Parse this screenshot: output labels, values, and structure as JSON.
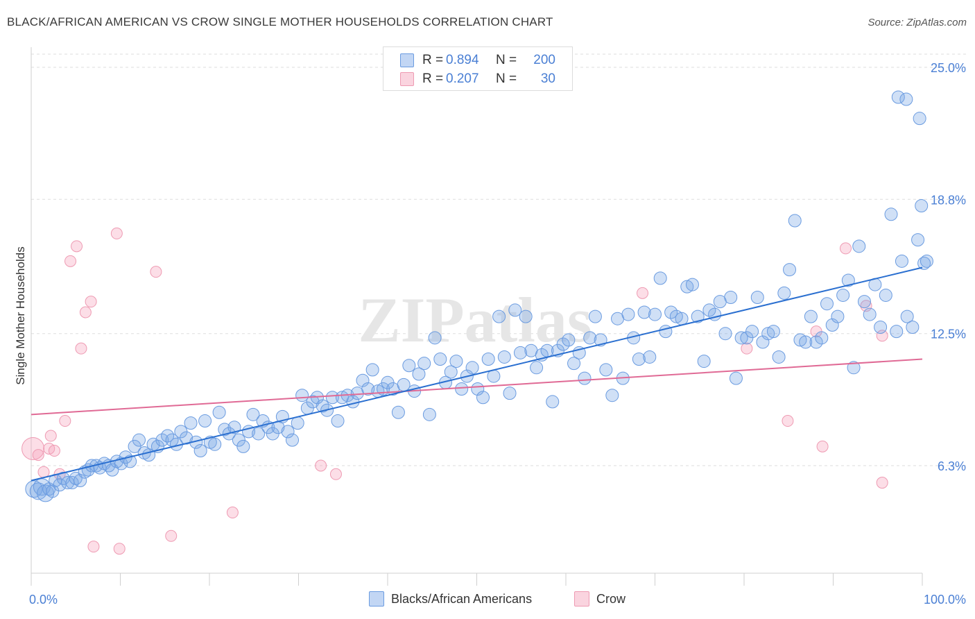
{
  "title": "BLACK/AFRICAN AMERICAN VS CROW SINGLE MOTHER HOUSEHOLDS CORRELATION CHART",
  "source": "Source: ZipAtlas.com",
  "watermark": "ZIPatlas",
  "colors": {
    "blue": "#4a7fd4",
    "blue_fill": "rgba(120,165,230,0.35)",
    "blue_stroke": "#6a9be0",
    "blue_line": "#2a6fd0",
    "pink_fill": "rgba(245,160,185,0.35)",
    "pink_stroke": "#ee9ab2",
    "pink_line": "#e06a95",
    "grid": "#dedede",
    "axis_text": "#4a7fd4"
  },
  "legend": {
    "rows": [
      {
        "r_label": "R =",
        "r_value": "0.894",
        "n_label": "N =",
        "n_value": "200"
      },
      {
        "r_label": "R =",
        "r_value": "0.207",
        "n_label": "N =",
        "n_value": "30"
      }
    ]
  },
  "bottom_legend": {
    "items": [
      {
        "label": "Blacks/African Americans"
      },
      {
        "label": "Crow"
      }
    ]
  },
  "chart_data": {
    "type": "scatter",
    "title": "BLACK/AFRICAN AMERICAN VS CROW SINGLE MOTHER HOUSEHOLDS CORRELATION CHART",
    "xlabel": "",
    "ylabel": "Single Mother Households",
    "xlim": [
      0,
      100
    ],
    "ylim": [
      0,
      26
    ],
    "x_tick_labels": [
      "0.0%",
      "100.0%"
    ],
    "y_ticks": [
      6.3,
      12.5,
      18.8,
      25.0
    ],
    "y_tick_labels": [
      "6.3%",
      "12.5%",
      "18.8%",
      "25.0%"
    ],
    "grid": "horizontal dashed",
    "legend_position": "top-center",
    "series": [
      {
        "name": "Blacks/African Americans",
        "color": "blue",
        "trend": {
          "x": [
            0,
            100
          ],
          "y": [
            5.6,
            15.6
          ]
        },
        "points": [
          [
            0.3,
            5.2
          ],
          [
            0.8,
            5.1
          ],
          [
            1.2,
            5.3
          ],
          [
            1.6,
            5.0
          ],
          [
            2.0,
            5.2
          ],
          [
            2.4,
            5.1
          ],
          [
            2.7,
            5.6
          ],
          [
            3.2,
            5.4
          ],
          [
            3.6,
            5.7
          ],
          [
            4.1,
            5.5
          ],
          [
            4.6,
            5.5
          ],
          [
            5.0,
            5.7
          ],
          [
            5.5,
            5.6
          ],
          [
            6.0,
            6.0
          ],
          [
            6.4,
            6.1
          ],
          [
            6.8,
            6.3
          ],
          [
            7.3,
            6.3
          ],
          [
            7.7,
            6.2
          ],
          [
            8.2,
            6.4
          ],
          [
            8.7,
            6.3
          ],
          [
            9.1,
            6.1
          ],
          [
            9.6,
            6.5
          ],
          [
            10.1,
            6.4
          ],
          [
            10.6,
            6.7
          ],
          [
            11.1,
            6.5
          ],
          [
            11.6,
            7.2
          ],
          [
            12.1,
            7.5
          ],
          [
            12.7,
            6.9
          ],
          [
            13.2,
            6.8
          ],
          [
            13.7,
            7.3
          ],
          [
            14.2,
            7.2
          ],
          [
            14.7,
            7.5
          ],
          [
            15.3,
            7.7
          ],
          [
            15.8,
            7.5
          ],
          [
            16.3,
            7.3
          ],
          [
            16.8,
            7.9
          ],
          [
            17.4,
            7.6
          ],
          [
            17.9,
            8.3
          ],
          [
            18.5,
            7.4
          ],
          [
            19.0,
            7.0
          ],
          [
            19.5,
            8.4
          ],
          [
            20.1,
            7.4
          ],
          [
            20.6,
            7.3
          ],
          [
            21.1,
            8.8
          ],
          [
            21.7,
            8.0
          ],
          [
            22.2,
            7.8
          ],
          [
            22.8,
            8.1
          ],
          [
            23.3,
            7.5
          ],
          [
            23.8,
            7.2
          ],
          [
            24.4,
            7.9
          ],
          [
            24.9,
            8.7
          ],
          [
            25.5,
            7.8
          ],
          [
            26.0,
            8.4
          ],
          [
            26.6,
            8.1
          ],
          [
            27.1,
            7.8
          ],
          [
            27.7,
            8.1
          ],
          [
            28.2,
            8.6
          ],
          [
            28.8,
            7.9
          ],
          [
            29.3,
            7.5
          ],
          [
            29.9,
            8.3
          ],
          [
            30.4,
            9.6
          ],
          [
            31.0,
            9.0
          ],
          [
            31.6,
            9.3
          ],
          [
            32.1,
            9.5
          ],
          [
            32.7,
            9.1
          ],
          [
            33.2,
            8.9
          ],
          [
            33.8,
            9.5
          ],
          [
            34.4,
            8.4
          ],
          [
            34.9,
            9.5
          ],
          [
            35.5,
            9.6
          ],
          [
            36.1,
            9.3
          ],
          [
            36.6,
            9.7
          ],
          [
            37.2,
            10.3
          ],
          [
            37.8,
            9.9
          ],
          [
            38.3,
            10.8
          ],
          [
            38.9,
            9.8
          ],
          [
            39.5,
            9.9
          ],
          [
            40.0,
            10.2
          ],
          [
            40.6,
            9.9
          ],
          [
            41.2,
            8.8
          ],
          [
            41.8,
            10.1
          ],
          [
            42.4,
            11.0
          ],
          [
            43.0,
            9.8
          ],
          [
            43.5,
            10.6
          ],
          [
            44.1,
            11.1
          ],
          [
            44.7,
            8.7
          ],
          [
            45.3,
            12.3
          ],
          [
            45.9,
            11.3
          ],
          [
            46.5,
            10.2
          ],
          [
            47.1,
            10.7
          ],
          [
            47.7,
            11.2
          ],
          [
            48.3,
            9.9
          ],
          [
            48.9,
            10.5
          ],
          [
            49.5,
            10.9
          ],
          [
            50.1,
            9.9
          ],
          [
            50.7,
            9.5
          ],
          [
            51.3,
            11.3
          ],
          [
            51.9,
            10.5
          ],
          [
            52.5,
            13.3
          ],
          [
            53.1,
            11.4
          ],
          [
            53.7,
            9.7
          ],
          [
            54.3,
            13.6
          ],
          [
            54.9,
            11.6
          ],
          [
            55.5,
            13.3
          ],
          [
            56.1,
            11.7
          ],
          [
            56.7,
            10.9
          ],
          [
            57.3,
            11.5
          ],
          [
            57.9,
            11.7
          ],
          [
            58.5,
            9.3
          ],
          [
            59.1,
            11.7
          ],
          [
            59.7,
            12.0
          ],
          [
            60.3,
            12.2
          ],
          [
            60.9,
            11.1
          ],
          [
            61.5,
            11.6
          ],
          [
            62.1,
            10.4
          ],
          [
            62.7,
            12.3
          ],
          [
            63.3,
            13.3
          ],
          [
            63.9,
            12.2
          ],
          [
            64.5,
            10.8
          ],
          [
            65.2,
            9.6
          ],
          [
            65.8,
            13.2
          ],
          [
            66.4,
            10.4
          ],
          [
            67.0,
            13.4
          ],
          [
            67.6,
            12.3
          ],
          [
            68.2,
            11.3
          ],
          [
            68.8,
            13.5
          ],
          [
            69.4,
            11.4
          ],
          [
            70.0,
            13.4
          ],
          [
            70.6,
            15.1
          ],
          [
            71.2,
            12.6
          ],
          [
            71.8,
            13.5
          ],
          [
            72.4,
            13.3
          ],
          [
            73.0,
            13.2
          ],
          [
            73.6,
            14.7
          ],
          [
            74.2,
            14.8
          ],
          [
            74.8,
            13.3
          ],
          [
            75.5,
            11.2
          ],
          [
            76.1,
            13.6
          ],
          [
            76.7,
            13.4
          ],
          [
            77.3,
            14.0
          ],
          [
            77.9,
            12.5
          ],
          [
            78.5,
            14.2
          ],
          [
            79.1,
            10.4
          ],
          [
            79.7,
            12.3
          ],
          [
            80.3,
            12.3
          ],
          [
            80.9,
            12.6
          ],
          [
            81.5,
            14.2
          ],
          [
            82.1,
            12.1
          ],
          [
            82.7,
            12.5
          ],
          [
            83.3,
            12.6
          ],
          [
            83.9,
            11.4
          ],
          [
            84.5,
            14.4
          ],
          [
            85.1,
            15.5
          ],
          [
            85.7,
            17.8
          ],
          [
            86.3,
            12.2
          ],
          [
            86.9,
            12.1
          ],
          [
            87.5,
            13.3
          ],
          [
            88.1,
            12.1
          ],
          [
            88.7,
            12.3
          ],
          [
            89.3,
            13.9
          ],
          [
            89.9,
            12.9
          ],
          [
            90.5,
            13.3
          ],
          [
            91.1,
            14.3
          ],
          [
            91.7,
            15.0
          ],
          [
            92.3,
            10.9
          ],
          [
            92.9,
            16.6
          ],
          [
            93.5,
            14.0
          ],
          [
            94.1,
            13.4
          ],
          [
            94.7,
            14.8
          ],
          [
            95.3,
            12.8
          ],
          [
            95.9,
            14.3
          ],
          [
            96.5,
            18.1
          ],
          [
            97.1,
            12.6
          ],
          [
            97.7,
            15.9
          ],
          [
            98.3,
            13.3
          ],
          [
            98.9,
            12.8
          ],
          [
            99.5,
            16.9
          ],
          [
            99.9,
            18.5
          ],
          [
            100.2,
            15.8
          ],
          [
            100.5,
            15.9
          ],
          [
            99.7,
            22.6
          ],
          [
            97.3,
            23.6
          ],
          [
            98.2,
            23.5
          ]
        ]
      },
      {
        "name": "Crow",
        "color": "pink",
        "trend": {
          "x": [
            0,
            100
          ],
          "y": [
            8.7,
            11.3
          ]
        },
        "points": [
          [
            0.2,
            7.1
          ],
          [
            0.8,
            6.8
          ],
          [
            1.4,
            6.0
          ],
          [
            2.0,
            7.1
          ],
          [
            2.2,
            7.7
          ],
          [
            2.6,
            7.0
          ],
          [
            3.2,
            5.9
          ],
          [
            3.8,
            8.4
          ],
          [
            4.4,
            15.9
          ],
          [
            5.1,
            16.6
          ],
          [
            5.6,
            11.8
          ],
          [
            6.1,
            13.5
          ],
          [
            6.7,
            14.0
          ],
          [
            7.0,
            2.5
          ],
          [
            9.9,
            2.4
          ],
          [
            9.6,
            17.2
          ],
          [
            14.0,
            15.4
          ],
          [
            15.7,
            3.0
          ],
          [
            22.6,
            4.1
          ],
          [
            32.5,
            6.3
          ],
          [
            34.2,
            5.9
          ],
          [
            68.6,
            14.4
          ],
          [
            80.3,
            11.8
          ],
          [
            84.9,
            8.4
          ],
          [
            88.1,
            12.6
          ],
          [
            88.8,
            7.2
          ],
          [
            91.4,
            16.5
          ],
          [
            93.7,
            13.8
          ],
          [
            95.5,
            12.4
          ],
          [
            95.5,
            5.5
          ]
        ]
      }
    ]
  }
}
